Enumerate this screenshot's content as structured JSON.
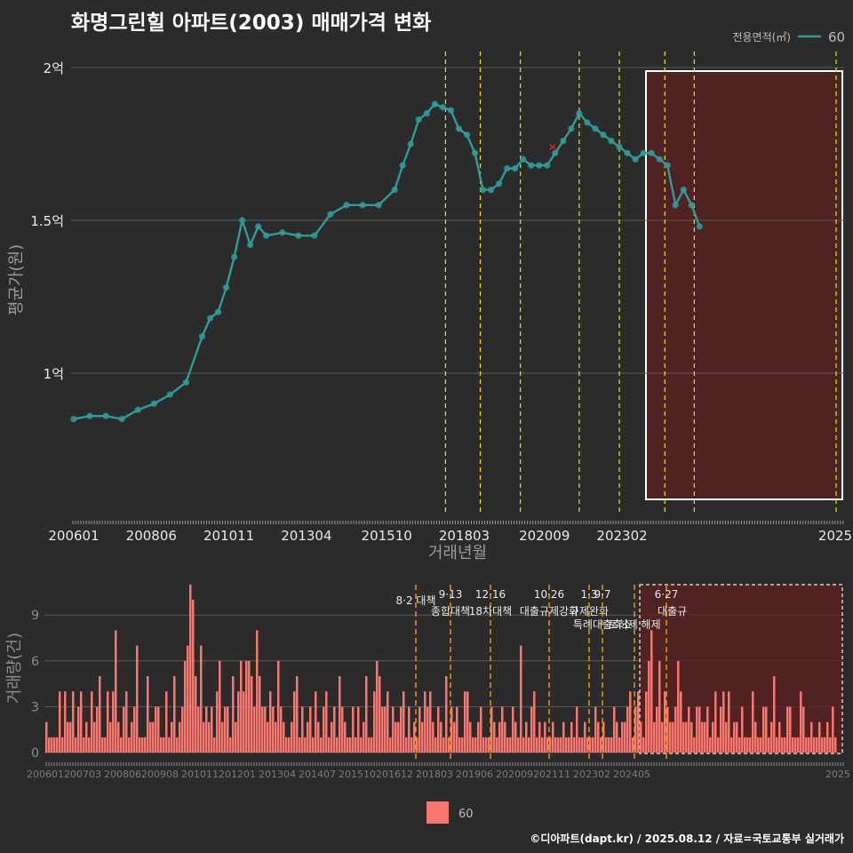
{
  "title": "화명그린힐 아파트(2003) 매매가격 변화",
  "footer": "©디아파트(dapt.kr) / 2025.08.12 / 자료=국토교통부 실거래가",
  "colors": {
    "background": "#2b2b2b",
    "price": "#2e9c9a",
    "volume": "#f8766d",
    "policy_line_yellow": "#e8e800",
    "policy_line_orange": "#f0a000",
    "highlight_fill": "#5a2020",
    "grid": "#5a5a5a"
  },
  "chart_data": [
    {
      "type": "line",
      "name": "price-chart",
      "xlabel": "거래년월",
      "ylabel": "평균가(원)",
      "ylim": [
        0.5,
        2.05
      ],
      "y_unit": "억",
      "y_ticks": [
        {
          "value": 1.0,
          "label": "1억"
        },
        {
          "value": 1.5,
          "label": "1.5억"
        },
        {
          "value": 2.0,
          "label": "2억"
        }
      ],
      "x_ticks": [
        "200601",
        "200806",
        "201011",
        "201304",
        "201510",
        "201803",
        "202009",
        "202302",
        "2025"
      ],
      "legend": {
        "title": "전용면적(㎡)",
        "entries": [
          "60"
        ],
        "position": "top-right"
      },
      "highlight_range": [
        "202012",
        "202507"
      ],
      "policy_lines": [
        "201708",
        "201809",
        "201912",
        "202110",
        "202301",
        "202406",
        "202505",
        "202507"
      ],
      "marked_point": {
        "x": "202012",
        "y": 1.74,
        "symbol": "x"
      },
      "series": [
        {
          "name": "60",
          "points": [
            [
              "200601",
              0.85
            ],
            [
              "200607",
              0.86
            ],
            [
              "200701",
              0.86
            ],
            [
              "200707",
              0.85
            ],
            [
              "200801",
              0.88
            ],
            [
              "200807",
              0.9
            ],
            [
              "200901",
              0.93
            ],
            [
              "200907",
              0.97
            ],
            [
              "201001",
              1.12
            ],
            [
              "201004",
              1.18
            ],
            [
              "201007",
              1.2
            ],
            [
              "201010",
              1.28
            ],
            [
              "201101",
              1.38
            ],
            [
              "201104",
              1.5
            ],
            [
              "201107",
              1.42
            ],
            [
              "201110",
              1.48
            ],
            [
              "201201",
              1.45
            ],
            [
              "201207",
              1.46
            ],
            [
              "201301",
              1.45
            ],
            [
              "201307",
              1.45
            ],
            [
              "201401",
              1.52
            ],
            [
              "201407",
              1.55
            ],
            [
              "201501",
              1.55
            ],
            [
              "201507",
              1.55
            ],
            [
              "201601",
              1.6
            ],
            [
              "201604",
              1.68
            ],
            [
              "201607",
              1.75
            ],
            [
              "201610",
              1.83
            ],
            [
              "201701",
              1.85
            ],
            [
              "201704",
              1.88
            ],
            [
              "201707",
              1.87
            ],
            [
              "201710",
              1.86
            ],
            [
              "201801",
              1.8
            ],
            [
              "201804",
              1.78
            ],
            [
              "201807",
              1.72
            ],
            [
              "201810",
              1.6
            ],
            [
              "201901",
              1.6
            ],
            [
              "201904",
              1.62
            ],
            [
              "201907",
              1.67
            ],
            [
              "201910",
              1.67
            ],
            [
              "202001",
              1.7
            ],
            [
              "202004",
              1.68
            ],
            [
              "202007",
              1.68
            ],
            [
              "202010",
              1.68
            ],
            [
              "202101",
              1.72
            ],
            [
              "202104",
              1.76
            ],
            [
              "202107",
              1.8
            ],
            [
              "202110",
              1.85
            ],
            [
              "202201",
              1.82
            ],
            [
              "202204",
              1.8
            ],
            [
              "202207",
              1.78
            ],
            [
              "202210",
              1.76
            ],
            [
              "202301",
              1.74
            ],
            [
              "202304",
              1.72
            ],
            [
              "202307",
              1.7
            ],
            [
              "202310",
              1.72
            ],
            [
              "202401",
              1.72
            ],
            [
              "202404",
              1.7
            ],
            [
              "202407",
              1.68
            ],
            [
              "202410",
              1.55
            ],
            [
              "202501",
              1.6
            ],
            [
              "202504",
              1.55
            ],
            [
              "202507",
              1.48
            ]
          ]
        }
      ]
    },
    {
      "type": "bar",
      "name": "volume-chart",
      "ylabel": "거래량(건)",
      "ylim": [
        0,
        11
      ],
      "y_ticks": [
        0,
        3,
        6,
        9
      ],
      "x_ticks": [
        "200601",
        "200703",
        "200806",
        "200908",
        "201011",
        "201201",
        "201304",
        "201407",
        "201510",
        "201612",
        "201803",
        "201906",
        "202009",
        "202111",
        "202302",
        "202405",
        "2025"
      ],
      "legend": {
        "entries": [
          "60"
        ],
        "position": "bottom"
      },
      "highlight_range": [
        "202011",
        "202507"
      ],
      "policy_events": [
        {
          "x": "201708",
          "date": "",
          "label": "8·2 대책"
        },
        {
          "x": "201809",
          "date": "9·13",
          "label": "종합대책"
        },
        {
          "x": "201912",
          "date": "12·16",
          "label": "18차대책"
        },
        {
          "x": "202110",
          "date": "10·26",
          "label": "대출규제강화"
        },
        {
          "x": "202301",
          "date": "1·3",
          "label": "규제완화"
        },
        {
          "x": "202306",
          "date": "9·7",
          "label": "특례대출축소"
        },
        {
          "x": "202406",
          "date": "",
          "label": "토허제 해제"
        },
        {
          "x": "202506",
          "date": "6·27",
          "label": "대출규"
        }
      ],
      "series": [
        {
          "name": "60",
          "values": [
            2,
            1,
            1,
            1,
            1,
            4,
            1,
            4,
            2,
            2,
            4,
            1,
            3,
            4,
            1,
            2,
            1,
            4,
            2,
            3,
            5,
            1,
            1,
            4,
            2,
            4,
            8,
            2,
            1,
            3,
            4,
            1,
            2,
            3,
            7,
            1,
            1,
            1,
            5,
            2,
            2,
            3,
            3,
            1,
            1,
            4,
            1,
            2,
            5,
            1,
            2,
            3,
            6,
            7,
            11,
            10,
            5,
            3,
            7,
            2,
            3,
            2,
            3,
            1,
            4,
            6,
            2,
            3,
            3,
            1,
            5,
            2,
            4,
            6,
            4,
            6,
            6,
            5,
            3,
            8,
            5,
            3,
            3,
            2,
            4,
            3,
            2,
            6,
            3,
            2,
            1,
            1,
            2,
            4,
            5,
            1,
            3,
            1,
            2,
            3,
            1,
            4,
            2,
            1,
            3,
            4,
            1,
            2,
            3,
            1,
            5,
            3,
            2,
            1,
            1,
            3,
            1,
            3,
            1,
            2,
            5,
            1,
            1,
            4,
            6,
            5,
            3,
            3,
            4,
            1,
            3,
            2,
            2,
            3,
            4,
            1,
            3,
            1,
            2,
            1,
            3,
            2,
            4,
            3,
            4,
            2,
            1,
            3,
            2,
            1,
            5,
            1,
            3,
            2,
            3,
            1,
            1,
            4,
            4,
            2,
            1,
            1,
            2,
            3,
            1,
            1,
            1,
            3,
            2,
            1,
            2,
            3,
            2,
            1,
            1,
            3,
            2,
            1,
            7,
            1,
            2,
            1,
            3,
            4,
            1,
            2,
            1,
            2,
            1,
            1,
            2,
            1,
            1,
            1,
            2,
            1,
            1,
            2,
            1,
            3,
            1,
            1,
            2,
            1,
            1,
            1,
            3,
            2,
            1,
            2,
            1,
            1,
            1,
            3,
            2,
            1,
            2,
            2,
            3,
            4,
            1,
            3,
            4,
            2,
            1,
            4,
            6,
            8,
            2,
            3,
            6,
            2,
            4,
            3,
            2,
            2,
            3,
            6,
            4,
            2,
            2,
            3,
            2,
            1,
            3,
            3,
            2,
            2,
            3,
            1,
            2,
            4,
            1,
            3,
            4,
            2,
            4,
            1,
            2,
            2,
            1,
            3,
            1,
            1,
            1,
            4,
            2,
            1,
            1,
            3,
            3,
            1,
            2,
            5,
            1,
            2,
            1,
            1,
            3,
            3,
            1,
            1,
            1,
            4,
            3,
            1,
            1,
            2,
            1,
            1,
            2,
            1,
            1,
            2,
            1,
            3,
            1
          ]
        }
      ]
    }
  ]
}
